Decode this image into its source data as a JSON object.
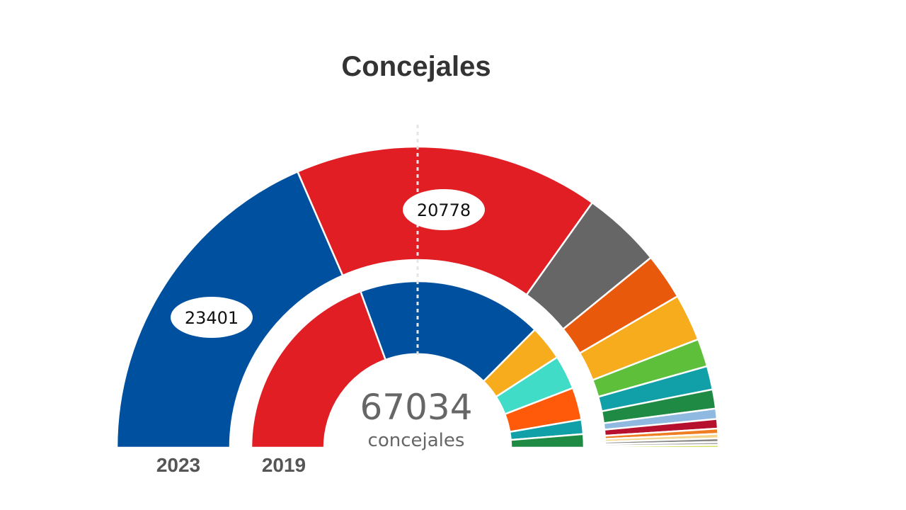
{
  "chart_data": {
    "type": "pie",
    "subtype": "parliament-semicircle-double-ring",
    "title": "Concejales",
    "total": 67034,
    "total_label": "concejales",
    "rings": [
      {
        "name": "2023",
        "label": "2023",
        "segments": [
          {
            "value": 23401,
            "color": "#0050a0",
            "label": "23401"
          },
          {
            "value": 20778,
            "color": "#e01e24",
            "label": "20778"
          },
          {
            "value": 5400,
            "color": "#666666"
          },
          {
            "value": 3150,
            "color": "#e8590c"
          },
          {
            "value": 3200,
            "color": "#f7ac1e"
          },
          {
            "value": 1900,
            "color": "#5dbf3a"
          },
          {
            "value": 1600,
            "color": "#12a0a8"
          },
          {
            "value": 1300,
            "color": "#1e8a44"
          },
          {
            "value": 700,
            "color": "#8fb9e0"
          },
          {
            "value": 650,
            "color": "#b5112f"
          },
          {
            "value": 350,
            "color": "#ef7d22"
          },
          {
            "value": 300,
            "color": "#f4d58d"
          },
          {
            "value": 250,
            "color": "#888888"
          },
          {
            "value": 200,
            "color": "#aaaaaa"
          },
          {
            "value": 180,
            "color": "#c9d43a"
          }
        ]
      },
      {
        "name": "2019",
        "label": "2019",
        "segments": [
          {
            "value": 22300,
            "color": "#e01e24"
          },
          {
            "value": 20700,
            "color": "#0050a0"
          },
          {
            "value": 3900,
            "color": "#f7ac1e"
          },
          {
            "value": 3800,
            "color": "#40dcc8"
          },
          {
            "value": 3600,
            "color": "#ff5a0a"
          },
          {
            "value": 1600,
            "color": "#12a0a8"
          },
          {
            "value": 1500,
            "color": "#1e8a44"
          }
        ]
      }
    ],
    "reference_line": "majority-center (dotted vertical)"
  }
}
